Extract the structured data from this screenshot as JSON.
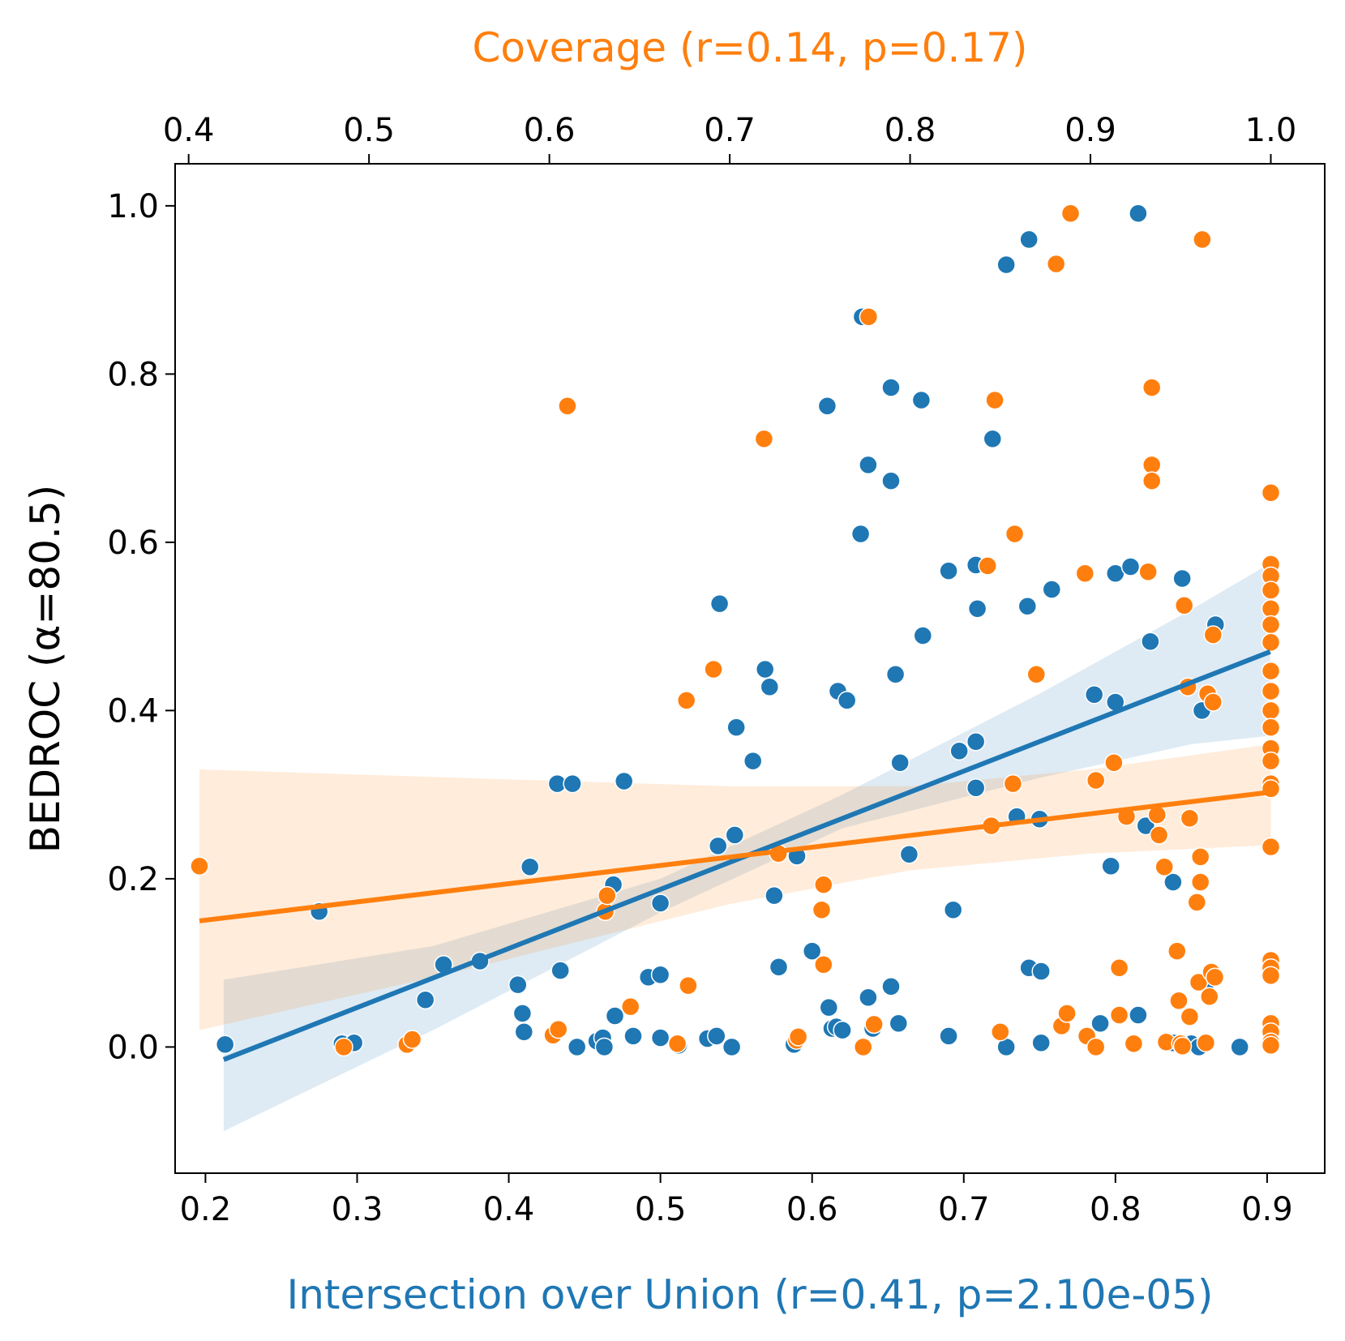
{
  "chart_data": {
    "type": "scatter",
    "title": "",
    "ylabel": "BEDROC (α=80.5)",
    "ylim": [
      -0.15,
      1.05
    ],
    "yticks": [
      "0.0",
      "0.2",
      "0.4",
      "0.6",
      "0.8",
      "1.0"
    ],
    "grid": false,
    "bottom_axis": {
      "label": "Intersection over Union (r=0.41, p=2.10e-05)",
      "xlim": [
        0.18,
        0.938
      ],
      "ticks": [
        "0.2",
        "0.3",
        "0.4",
        "0.5",
        "0.6",
        "0.7",
        "0.8",
        "0.9"
      ]
    },
    "top_axis": {
      "label": "Coverage (r=0.14, p=0.17)",
      "xlim": [
        0.3925,
        1.0299
      ],
      "ticks": [
        "0.4",
        "0.5",
        "0.6",
        "0.7",
        "0.8",
        "0.9",
        "1.0"
      ]
    },
    "series": [
      {
        "name": "Intersection over Union",
        "axis": "bottom",
        "color": "#1f77b4",
        "r": 0.41,
        "p": "2.10e-05",
        "fit": {
          "x": [
            0.212,
            0.902
          ],
          "y": [
            -0.015,
            0.47
          ]
        },
        "ci_lower": {
          "x": [
            0.212,
            0.35,
            0.5,
            0.62,
            0.75,
            0.85,
            0.902
          ],
          "y": [
            -0.1,
            0.02,
            0.16,
            0.26,
            0.32,
            0.36,
            0.37
          ]
        },
        "ci_upper": {
          "x": [
            0.212,
            0.35,
            0.5,
            0.62,
            0.75,
            0.85,
            0.902
          ],
          "y": [
            0.08,
            0.12,
            0.2,
            0.3,
            0.42,
            0.52,
            0.575
          ]
        },
        "points": [
          [
            0.213,
            0.003
          ],
          [
            0.275,
            0.161
          ],
          [
            0.29,
            0.004
          ],
          [
            0.298,
            0.005
          ],
          [
            0.345,
            0.056
          ],
          [
            0.357,
            0.098
          ],
          [
            0.381,
            0.102
          ],
          [
            0.406,
            0.074
          ],
          [
            0.409,
            0.04
          ],
          [
            0.41,
            0.018
          ],
          [
            0.414,
            0.214
          ],
          [
            0.432,
            0.313
          ],
          [
            0.434,
            0.091
          ],
          [
            0.442,
            0.313
          ],
          [
            0.445,
            0.0
          ],
          [
            0.458,
            0.007
          ],
          [
            0.462,
            0.011
          ],
          [
            0.463,
            0.0
          ],
          [
            0.469,
            0.193
          ],
          [
            0.47,
            0.037
          ],
          [
            0.476,
            0.316
          ],
          [
            0.482,
            0.013
          ],
          [
            0.492,
            0.083
          ],
          [
            0.5,
            0.011
          ],
          [
            0.5,
            0.171
          ],
          [
            0.5,
            0.086
          ],
          [
            0.512,
            0.002
          ],
          [
            0.531,
            0.01
          ],
          [
            0.537,
            0.013
          ],
          [
            0.538,
            0.239
          ],
          [
            0.539,
            0.527
          ],
          [
            0.547,
            0.0
          ],
          [
            0.549,
            0.252
          ],
          [
            0.55,
            0.38
          ],
          [
            0.561,
            0.34
          ],
          [
            0.569,
            0.449
          ],
          [
            0.572,
            0.428
          ],
          [
            0.575,
            0.18
          ],
          [
            0.578,
            0.095
          ],
          [
            0.588,
            0.003
          ],
          [
            0.59,
            0.227
          ],
          [
            0.6,
            0.114
          ],
          [
            0.61,
            0.762
          ],
          [
            0.611,
            0.047
          ],
          [
            0.613,
            0.022
          ],
          [
            0.616,
            0.024
          ],
          [
            0.617,
            0.423
          ],
          [
            0.62,
            0.02
          ],
          [
            0.623,
            0.412
          ],
          [
            0.632,
            0.61
          ],
          [
            0.633,
            0.868
          ],
          [
            0.637,
            0.692
          ],
          [
            0.637,
            0.059
          ],
          [
            0.64,
            0.022
          ],
          [
            0.652,
            0.673
          ],
          [
            0.652,
            0.784
          ],
          [
            0.652,
            0.072
          ],
          [
            0.655,
            0.443
          ],
          [
            0.657,
            0.028
          ],
          [
            0.658,
            0.338
          ],
          [
            0.664,
            0.229
          ],
          [
            0.672,
            0.769
          ],
          [
            0.673,
            0.489
          ],
          [
            0.69,
            0.013
          ],
          [
            0.69,
            0.566
          ],
          [
            0.693,
            0.163
          ],
          [
            0.697,
            0.352
          ],
          [
            0.708,
            0.363
          ],
          [
            0.708,
            0.308
          ],
          [
            0.708,
            0.573
          ],
          [
            0.709,
            0.521
          ],
          [
            0.719,
            0.723
          ],
          [
            0.728,
            0.0
          ],
          [
            0.728,
            0.93
          ],
          [
            0.735,
            0.274
          ],
          [
            0.742,
            0.524
          ],
          [
            0.743,
            0.96
          ],
          [
            0.743,
            0.094
          ],
          [
            0.75,
            0.271
          ],
          [
            0.751,
            0.09
          ],
          [
            0.751,
            0.005
          ],
          [
            0.758,
            0.544
          ],
          [
            0.786,
            0.419
          ],
          [
            0.79,
            0.028
          ],
          [
            0.797,
            0.215
          ],
          [
            0.8,
            0.41
          ],
          [
            0.8,
            0.563
          ],
          [
            0.81,
            0.571
          ],
          [
            0.815,
            0.038
          ],
          [
            0.815,
            0.991
          ],
          [
            0.82,
            0.263
          ],
          [
            0.823,
            0.482
          ],
          [
            0.838,
            0.196
          ],
          [
            0.838,
            0.005
          ],
          [
            0.844,
            0.557
          ],
          [
            0.85,
            0.004
          ],
          [
            0.855,
            0.0
          ],
          [
            0.857,
            0.4
          ],
          [
            0.86,
            0.077
          ],
          [
            0.866,
            0.502
          ],
          [
            0.882,
            0.0
          ]
        ]
      },
      {
        "name": "Coverage",
        "axis": "top",
        "color": "#ff7f0e",
        "r": 0.14,
        "p": "0.17",
        "fit": {
          "x": [
            0.406,
            1.0
          ],
          "y": [
            0.15,
            0.303
          ]
        },
        "ci_lower": {
          "x": [
            0.406,
            0.55,
            0.7,
            0.8,
            0.9,
            1.0
          ],
          "y": [
            0.02,
            0.09,
            0.17,
            0.21,
            0.23,
            0.24
          ]
        },
        "ci_upper": {
          "x": [
            0.406,
            0.55,
            0.7,
            0.8,
            0.9,
            1.0
          ],
          "y": [
            0.33,
            0.32,
            0.31,
            0.31,
            0.33,
            0.36
          ]
        },
        "points": [
          [
            0.406,
            0.215
          ],
          [
            0.486,
            0.0
          ],
          [
            0.521,
            0.003
          ],
          [
            0.524,
            0.009
          ],
          [
            0.602,
            0.014
          ],
          [
            0.61,
            0.762
          ],
          [
            0.605,
            0.021
          ],
          [
            0.631,
            0.161
          ],
          [
            0.632,
            0.18
          ],
          [
            0.645,
            0.048
          ],
          [
            0.677,
            0.073
          ],
          [
            0.676,
            0.412
          ],
          [
            0.671,
            0.004
          ],
          [
            0.691,
            0.449
          ],
          [
            0.719,
            0.723
          ],
          [
            0.727,
            0.23
          ],
          [
            0.737,
            0.008
          ],
          [
            0.738,
            0.012
          ],
          [
            0.752,
            0.193
          ],
          [
            0.751,
            0.163
          ],
          [
            0.752,
            0.098
          ],
          [
            0.774,
            0.0
          ],
          [
            0.777,
            0.868
          ],
          [
            0.78,
            0.027
          ],
          [
            0.843,
            0.572
          ],
          [
            0.845,
            0.263
          ],
          [
            0.847,
            0.769
          ],
          [
            0.85,
            0.018
          ],
          [
            0.857,
            0.313
          ],
          [
            0.858,
            0.61
          ],
          [
            0.87,
            0.443
          ],
          [
            0.881,
            0.931
          ],
          [
            0.884,
            0.025
          ],
          [
            0.887,
            0.04
          ],
          [
            0.889,
            0.991
          ],
          [
            0.897,
            0.563
          ],
          [
            0.898,
            0.013
          ],
          [
            0.903,
            0.317
          ],
          [
            0.903,
            0.0
          ],
          [
            0.913,
            0.338
          ],
          [
            0.916,
            0.094
          ],
          [
            0.916,
            0.038
          ],
          [
            0.92,
            0.274
          ],
          [
            0.924,
            0.004
          ],
          [
            0.932,
            0.565
          ],
          [
            0.934,
            0.784
          ],
          [
            0.934,
            0.692
          ],
          [
            0.934,
            0.673
          ],
          [
            0.937,
            0.276
          ],
          [
            0.938,
            0.252
          ],
          [
            0.941,
            0.214
          ],
          [
            0.942,
            0.006
          ],
          [
            0.948,
            0.114
          ],
          [
            0.949,
            0.055
          ],
          [
            0.95,
            0.004
          ],
          [
            0.951,
            0.001
          ],
          [
            0.952,
            0.525
          ],
          [
            0.954,
            0.428
          ],
          [
            0.955,
            0.272
          ],
          [
            0.955,
            0.036
          ],
          [
            0.959,
            0.172
          ],
          [
            0.96,
            0.077
          ],
          [
            0.961,
            0.226
          ],
          [
            0.961,
            0.196
          ],
          [
            0.962,
            0.96
          ],
          [
            0.964,
            0.005
          ],
          [
            0.965,
            0.42
          ],
          [
            0.966,
            0.06
          ],
          [
            0.967,
            0.089
          ],
          [
            0.968,
            0.49
          ],
          [
            0.968,
            0.41
          ],
          [
            0.969,
            0.083
          ],
          [
            1.0,
            0.659
          ],
          [
            1.0,
            0.574
          ],
          [
            1.0,
            0.56
          ],
          [
            1.0,
            0.543
          ],
          [
            1.0,
            0.521
          ],
          [
            1.0,
            0.502
          ],
          [
            1.0,
            0.481
          ],
          [
            1.0,
            0.447
          ],
          [
            1.0,
            0.423
          ],
          [
            1.0,
            0.4
          ],
          [
            1.0,
            0.38
          ],
          [
            1.0,
            0.355
          ],
          [
            1.0,
            0.34
          ],
          [
            1.0,
            0.313
          ],
          [
            1.0,
            0.307
          ],
          [
            1.0,
            0.238
          ],
          [
            1.0,
            0.103
          ],
          [
            1.0,
            0.094
          ],
          [
            1.0,
            0.085
          ],
          [
            1.0,
            0.028
          ],
          [
            1.0,
            0.018
          ],
          [
            1.0,
            0.006
          ],
          [
            1.0,
            0.002
          ]
        ]
      }
    ]
  }
}
